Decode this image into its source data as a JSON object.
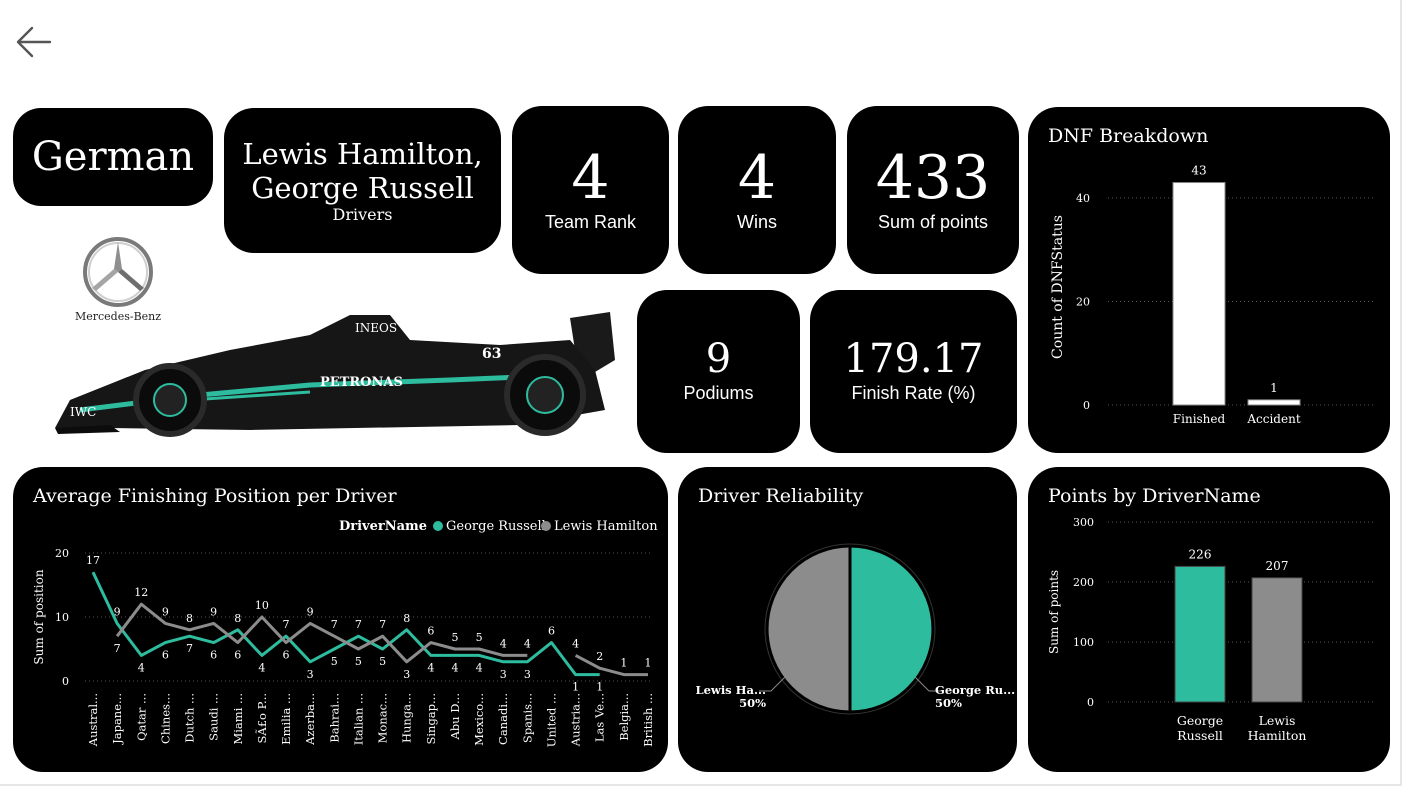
{
  "nav": {
    "back_icon": "arrow-left-icon"
  },
  "colors": {
    "accent": "#2ebc9f",
    "grey": "#8c8c8c",
    "card": "#000000"
  },
  "team": {
    "nationality": "German",
    "drivers_value": "Lewis Hamilton, George Russell",
    "drivers_value_line1": "Lewis Hamilton,",
    "drivers_value_line2": "George Russell",
    "drivers_label": "Drivers"
  },
  "logo": {
    "text": "Mercedes-Benz"
  },
  "kpis": {
    "team_rank": {
      "value": "4",
      "label": "Team Rank"
    },
    "wins": {
      "value": "4",
      "label": "Wins"
    },
    "points": {
      "value": "433",
      "label": "Sum of points"
    },
    "podiums": {
      "value": "9",
      "label": "Podiums"
    },
    "finish_rate": {
      "value": "179.17",
      "label": "Finish Rate (%)"
    }
  },
  "chart_data": [
    {
      "type": "bar",
      "title": "DNF Breakdown",
      "ylabel": "Count of DNFStatus",
      "xlabel": "",
      "categories": [
        "Finished",
        "Accident"
      ],
      "values": [
        43,
        1
      ],
      "yticks": [
        0,
        20,
        40
      ],
      "ylim": [
        0,
        46
      ],
      "grid": true
    },
    {
      "type": "line",
      "title": "Average Finishing Position per Driver",
      "ylabel": "Sum of position",
      "legend_title": "DriverName",
      "legend_position": "top-right",
      "yticks": [
        0,
        10,
        20
      ],
      "ylim": [
        0,
        20
      ],
      "grid": true,
      "x": [
        "Austral...",
        "Japane...",
        "Qatar ...",
        "Chines...",
        "Dutch ...",
        "Saudi ...",
        "Miami ...",
        "SÃ£o P...",
        "Emilia ...",
        "Azerba...",
        "Bahrai...",
        "Italian ...",
        "Monac...",
        "Hunga...",
        "Singap...",
        "Abu D...",
        "Mexico...",
        "Canadi...",
        "Spanis...",
        "United ...",
        "Austria...",
        "Las Ve...",
        "Belgia...",
        "British ..."
      ],
      "series": [
        {
          "name": "George Russell",
          "color": "#2ebc9f",
          "values": [
            17,
            9,
            4,
            6,
            7,
            6,
            8,
            4,
            7,
            3,
            5,
            7,
            5,
            8,
            4,
            4,
            4,
            3,
            3,
            6,
            1,
            1,
            null,
            null
          ]
        },
        {
          "name": "Lewis Hamilton",
          "color": "#8c8c8c",
          "values": [
            null,
            7,
            12,
            9,
            8,
            9,
            6,
            10,
            6,
            9,
            7,
            5,
            7,
            3,
            6,
            5,
            5,
            4,
            4,
            null,
            4,
            2,
            1,
            1
          ]
        }
      ]
    },
    {
      "type": "pie",
      "title": "Driver Reliability",
      "slices": [
        {
          "label": "George Ru...",
          "value": 50,
          "pct": "50%",
          "color": "#2ebc9f"
        },
        {
          "label": "Lewis Ha...",
          "value": 50,
          "pct": "50%",
          "color": "#8c8c8c"
        }
      ]
    },
    {
      "type": "bar",
      "title": "Points by DriverName",
      "ylabel": "Sum of points",
      "categories": [
        "George Russell",
        "Lewis Hamilton"
      ],
      "category_lines": [
        [
          "George",
          "Russell"
        ],
        [
          "Lewis",
          "Hamilton"
        ]
      ],
      "values": [
        226,
        207
      ],
      "colors": [
        "#2ebc9f",
        "#8c8c8c"
      ],
      "yticks": [
        0,
        100,
        200,
        300
      ],
      "ylim": [
        0,
        300
      ],
      "grid": true
    }
  ]
}
